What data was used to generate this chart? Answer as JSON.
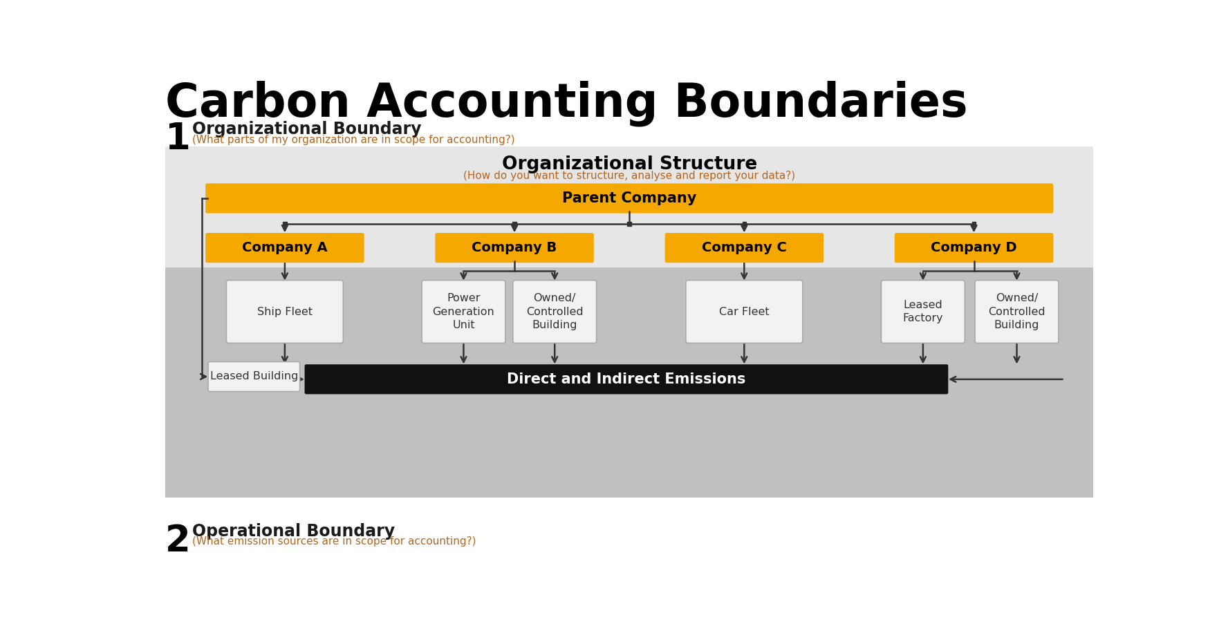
{
  "title": "Carbon Accounting Boundaries",
  "title_fontsize": 48,
  "title_fontweight": "bold",
  "bg_color": "#ffffff",
  "section1_num": "1",
  "section1_label": "Organizational Boundary",
  "section1_sub": "(What parts of my organization are in scope for accounting?)",
  "section1_label_color": "#1a1a1a",
  "section1_sub_color": "#b5651d",
  "section2_num": "2",
  "section2_label": "Operational Boundary",
  "section2_sub": "(What emission sources are in scope for accounting?)",
  "section2_label_color": "#1a1a1a",
  "section2_sub_color": "#b5651d",
  "light_gray_bg": "#e6e6e6",
  "dark_gray_bg": "#c0c0c0",
  "org_structure_title": "Organizational Structure",
  "org_structure_sub": "(How do you want to structure, analyse and report your data?)",
  "org_structure_sub_color": "#b5651d",
  "parent_company_label": "Parent Company",
  "parent_company_color": "#f5a800",
  "companies": [
    "Company A",
    "Company B",
    "Company C",
    "Company D"
  ],
  "company_color": "#f5a800",
  "asset_bg": "#f2f2f2",
  "asset_border": "#aaaaaa",
  "leased_building_label": "Leased Building",
  "leased_building_bg": "#f2f2f2",
  "leased_building_border": "#aaaaaa",
  "emissions_label": "Direct and Indirect Emissions",
  "emissions_bg": "#111111",
  "emissions_text_color": "#ffffff",
  "arrow_color": "#333333",
  "connector_color": "#333333"
}
